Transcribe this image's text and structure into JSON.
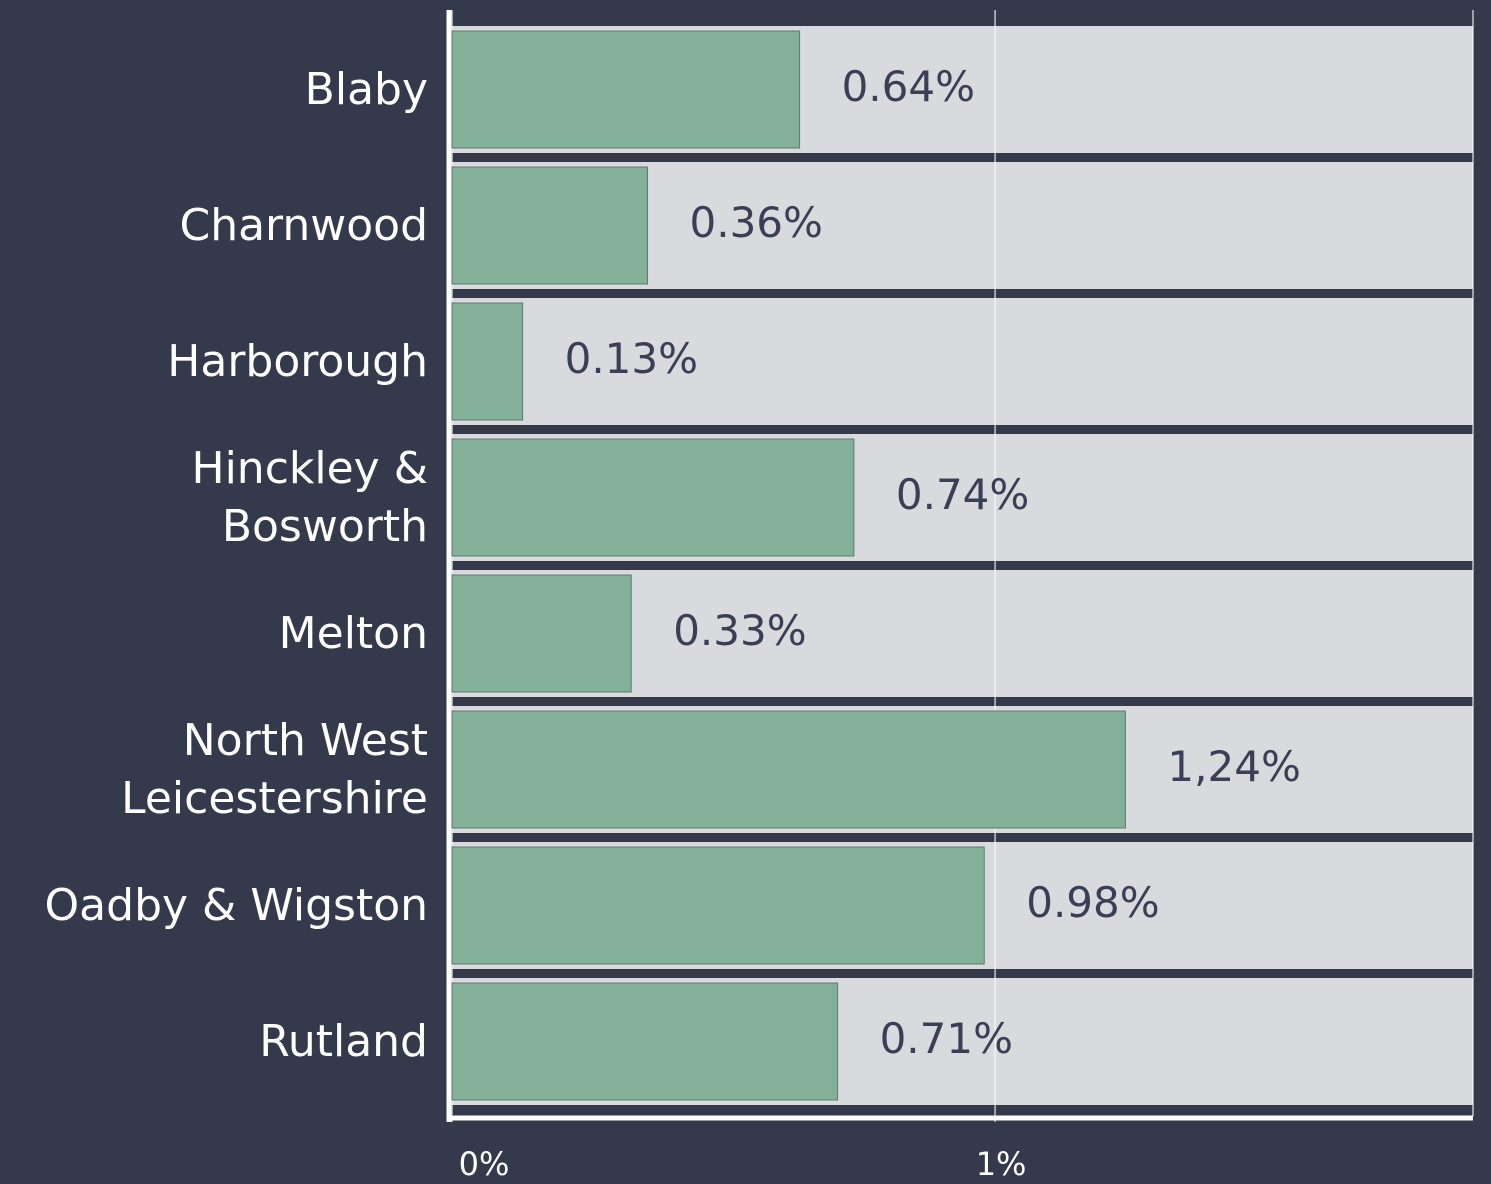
{
  "chart_data": {
    "type": "bar",
    "orientation": "horizontal",
    "categories": [
      "Blaby",
      "Charnwood",
      "Harborough",
      "Hinckley & Bosworth",
      "Melton",
      "North West Leicestershire",
      "Oadby & Wigston",
      "Rutland"
    ],
    "values": [
      0.64,
      0.36,
      0.13,
      0.74,
      0.33,
      1.24,
      0.98,
      0.71
    ],
    "value_labels": [
      "0.64%",
      "0.36%",
      "0.13%",
      "0.74%",
      "0.33%",
      "1,24%",
      "0.98%",
      "0.71%"
    ],
    "color": "#84b09a",
    "xlim": [
      0,
      1.88
    ],
    "xticks": [
      {
        "value": 0,
        "label": "0%"
      },
      {
        "value": 1,
        "label": "1%"
      }
    ],
    "grid": true
  }
}
